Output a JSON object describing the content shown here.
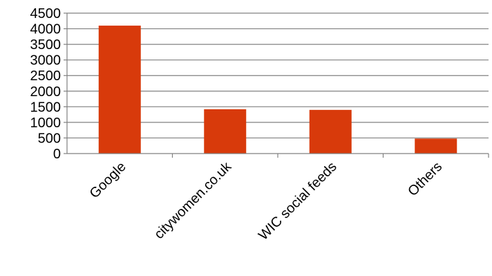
{
  "chart_data": {
    "type": "bar",
    "title": "",
    "xlabel": "",
    "ylabel": "",
    "categories": [
      "Google",
      "citywomen.co.uk",
      "WIC social feeds",
      "Others"
    ],
    "values": [
      4100,
      1420,
      1400,
      480
    ],
    "ylim": [
      0,
      4500
    ],
    "yticks": [
      "0",
      "500",
      "1000",
      "1500",
      "2000",
      "2500",
      "3000",
      "3500",
      "4000",
      "4500"
    ],
    "grid": true,
    "legend": "none",
    "colors": {
      "bar": "#d83a0b",
      "grid": "#808080",
      "axis": "#808080",
      "text": "#000000"
    }
  }
}
